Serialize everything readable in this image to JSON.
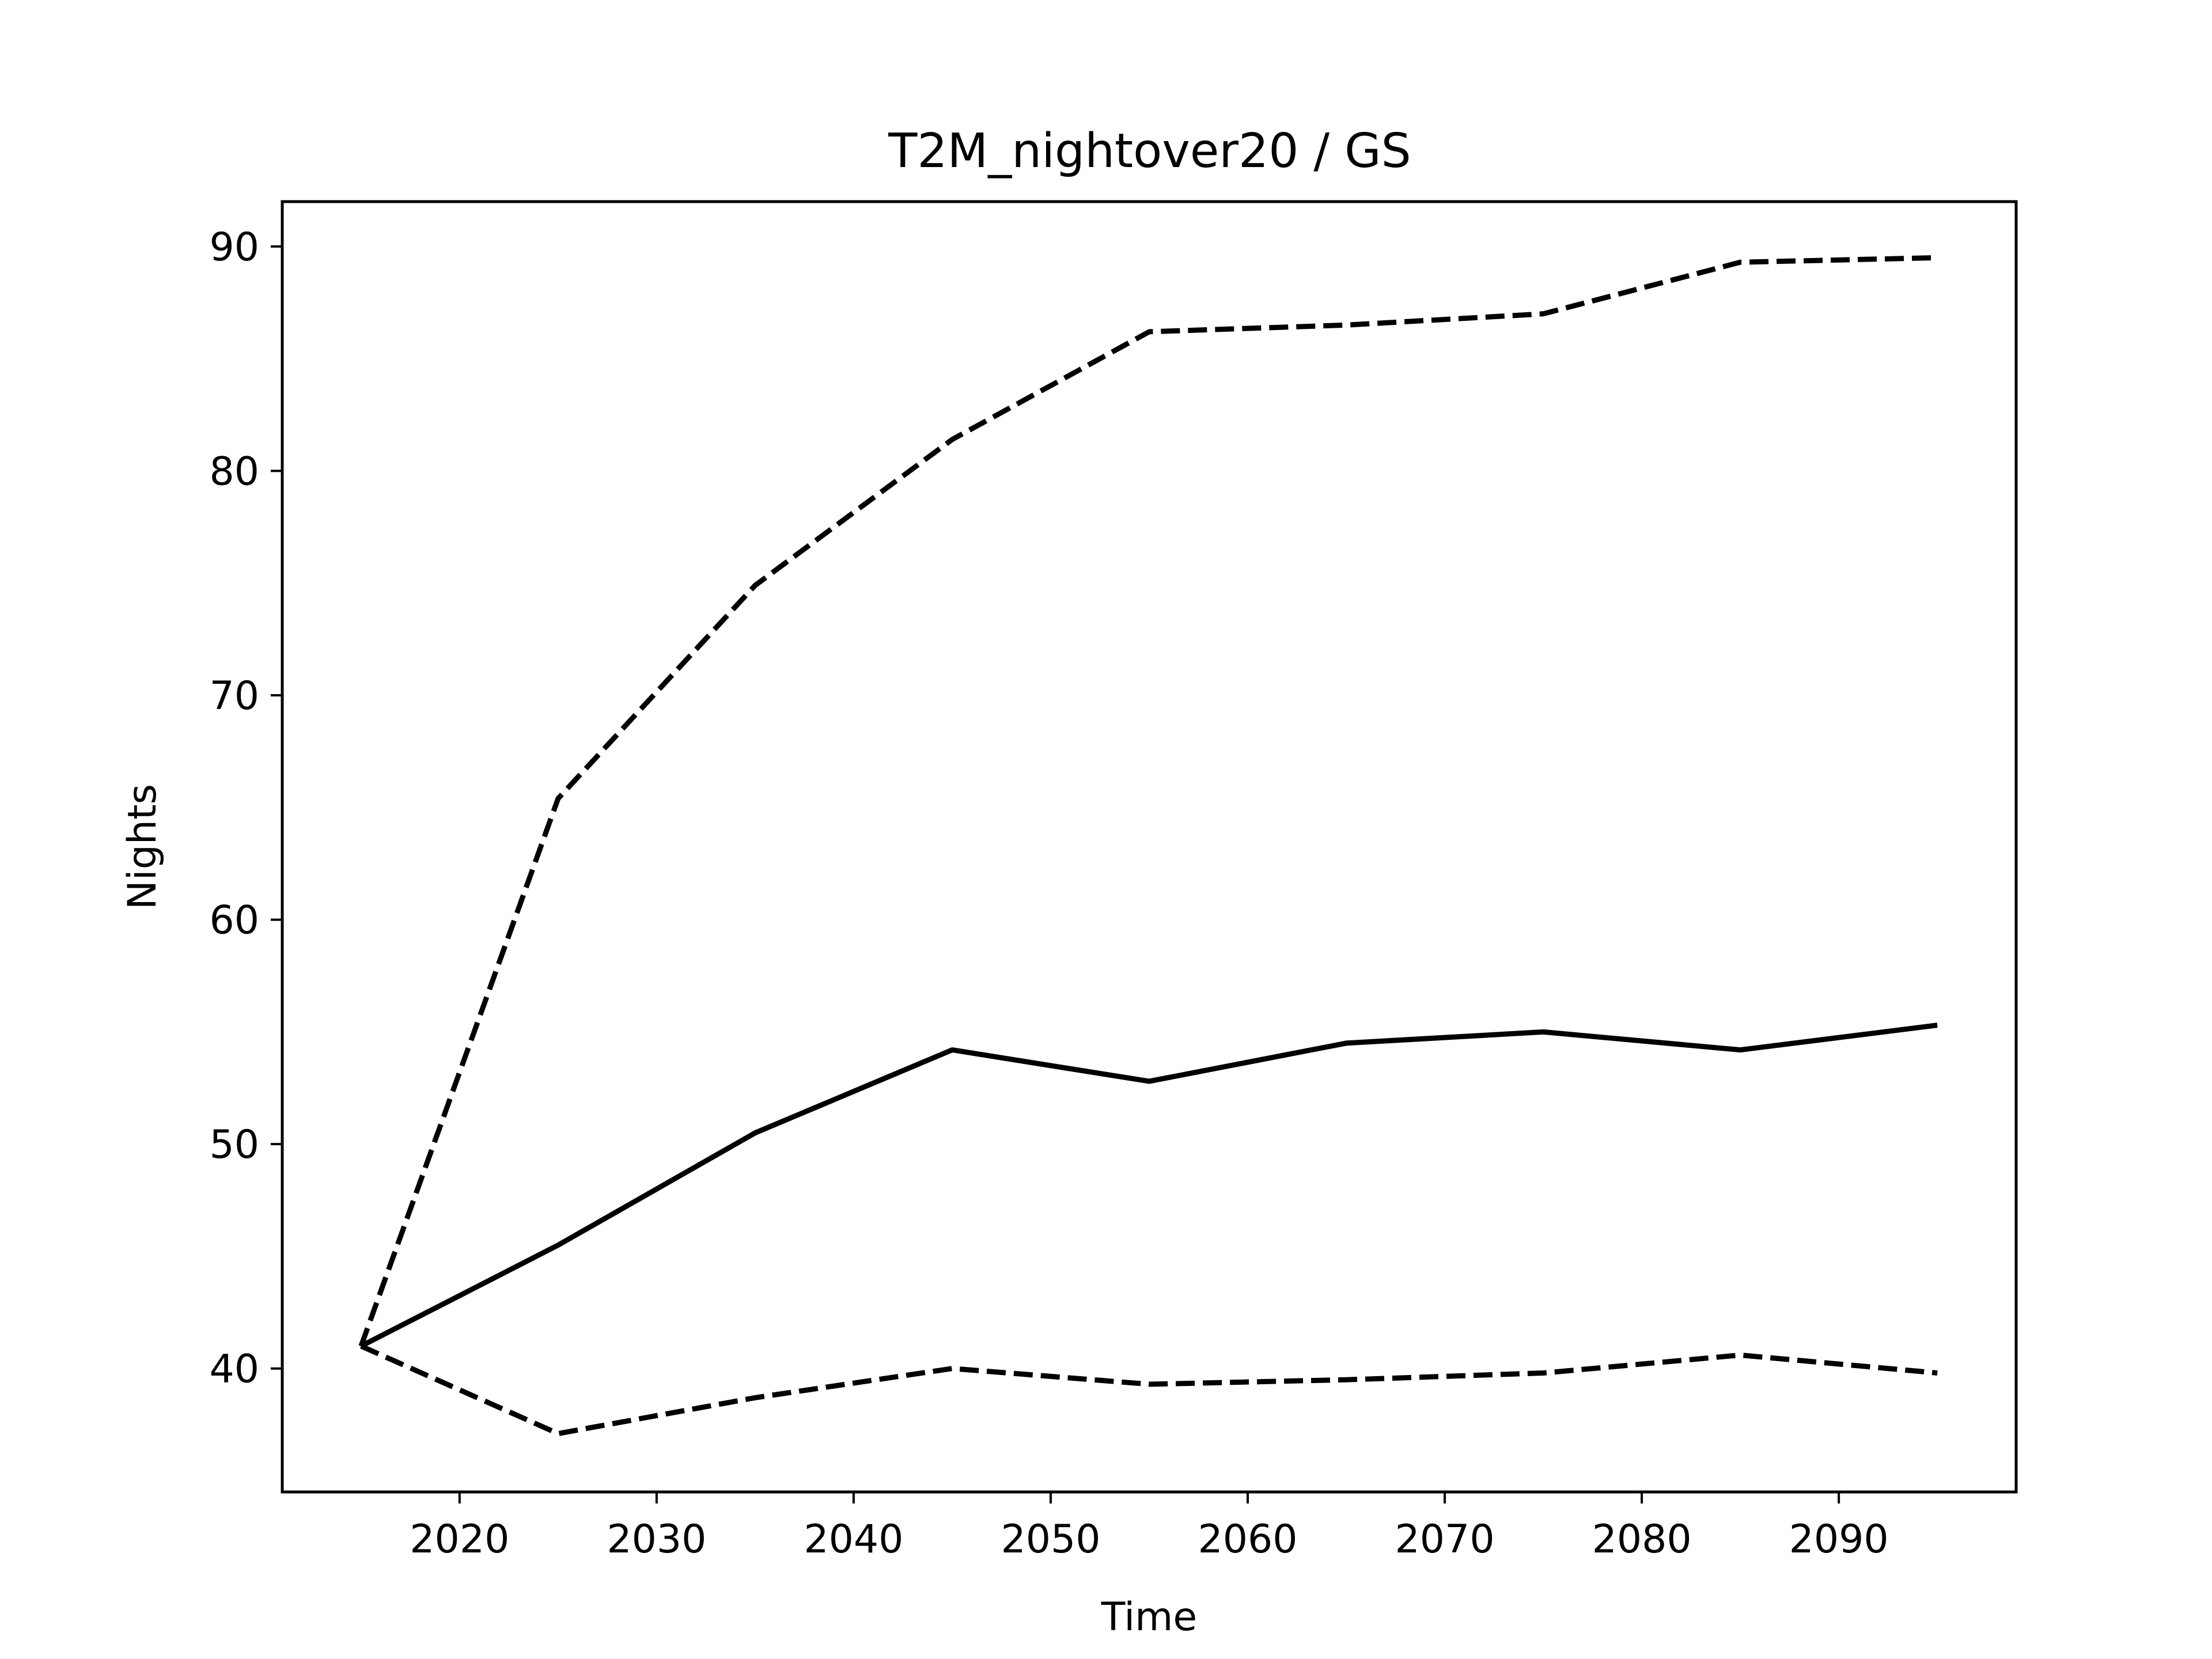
{
  "chart_data": {
    "type": "line",
    "title": "T2M_nightover20 / GS",
    "xlabel": "Time",
    "ylabel": "Nights",
    "xlim": [
      2011,
      2099
    ],
    "ylim": [
      34.5,
      92
    ],
    "xticks": [
      2020,
      2030,
      2040,
      2050,
      2060,
      2070,
      2080,
      2090
    ],
    "yticks": [
      40,
      50,
      60,
      70,
      80,
      90
    ],
    "grid": false,
    "x": [
      2015,
      2025,
      2035,
      2045,
      2055,
      2065,
      2075,
      2085,
      2095
    ],
    "series": [
      {
        "style": "dashed",
        "color": "#000000",
        "values": [
          41.0,
          65.4,
          74.9,
          81.4,
          86.2,
          86.5,
          87.0,
          89.3,
          89.5
        ]
      },
      {
        "style": "solid",
        "color": "#000000",
        "values": [
          41.0,
          45.5,
          50.5,
          54.2,
          52.8,
          54.5,
          55.0,
          54.2,
          55.3
        ]
      },
      {
        "style": "dashed",
        "color": "#000000",
        "values": [
          41.0,
          37.1,
          38.7,
          40.0,
          39.3,
          39.5,
          39.8,
          40.6,
          39.8
        ]
      }
    ]
  }
}
